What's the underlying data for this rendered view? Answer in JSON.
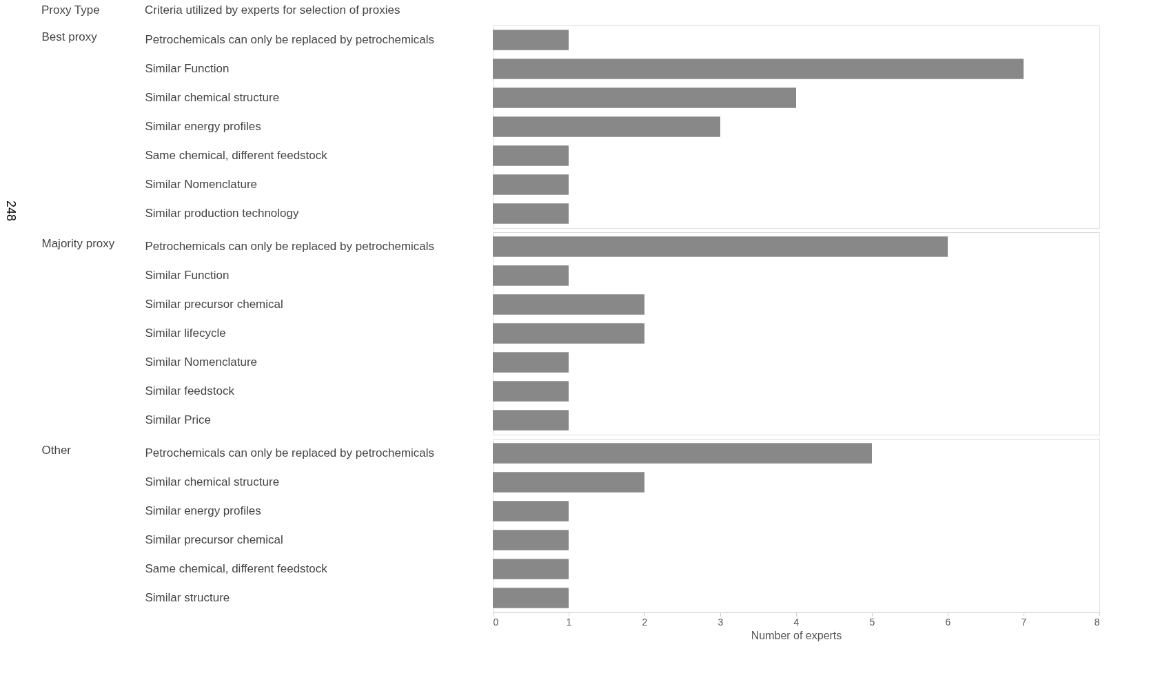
{
  "chart_data": [
    {
      "type": "bar",
      "orientation": "horizontal",
      "ylabel": "Best proxy",
      "annotations": [
        "Proxy Type",
        "Criteria utilized by experts for selection of proxies",
        "248"
      ],
      "categories": [
        "Petrochemicals can only be replaced by petrochemicals",
        "Similar Function",
        "Similar chemical structure",
        "Similar energy profiles",
        "Same chemical, different feedstock",
        "Similar Nomenclature",
        "Similar production technology"
      ],
      "values": [
        1,
        7,
        4,
        3,
        1,
        1,
        1
      ],
      "color": "#888888",
      "xlim": [
        0,
        8
      ],
      "tick_labels": "y",
      "grid": false
    },
    {
      "type": "bar",
      "orientation": "horizontal",
      "ylabel": "Majority proxy",
      "categories": [
        "Petrochemicals can only be replaced by petrochemicals",
        "Similar Function",
        "Similar precursor chemical",
        "Similar lifecycle",
        "Similar Nomenclature",
        "Similar feedstock",
        "Similar Price"
      ],
      "values": [
        6,
        1,
        2,
        2,
        1,
        1,
        1
      ],
      "color": "#888888",
      "xlim": [
        0,
        8
      ],
      "tick_labels": "y",
      "grid": false
    },
    {
      "type": "bar",
      "orientation": "horizontal",
      "ylabel": "Other",
      "xlabel": "Number of experts",
      "categories": [
        "Petrochemicals can only be replaced by petrochemicals",
        "Similar chemical structure",
        "Similar energy profiles",
        "Similar precursor chemical",
        "Same chemical, different feedstock",
        "Similar structure"
      ],
      "values": [
        5,
        2,
        1,
        1,
        1,
        1
      ],
      "color": "#888888",
      "xlim": [
        0,
        8
      ],
      "xticks": [
        0,
        1,
        2,
        3,
        4,
        5,
        6,
        7,
        8
      ],
      "grid": false
    }
  ]
}
